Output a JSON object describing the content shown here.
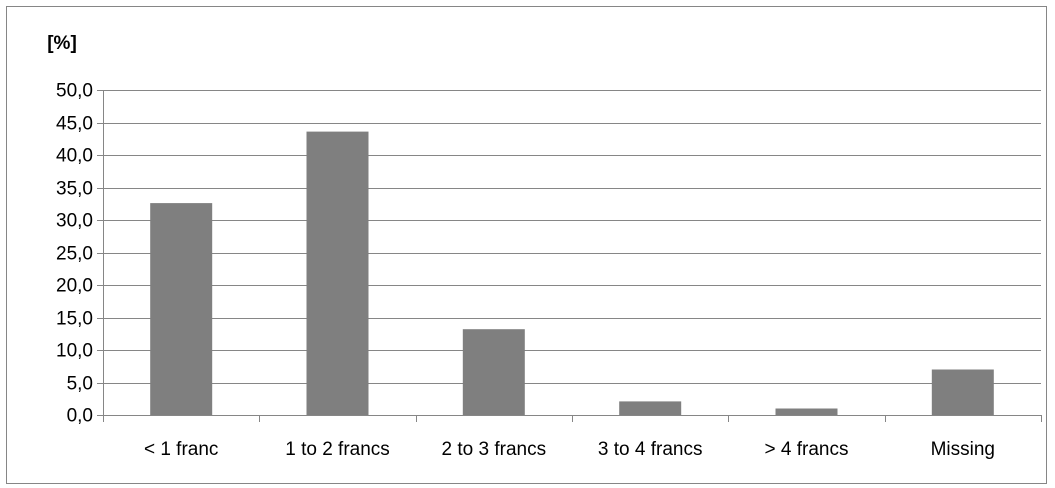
{
  "chart_data": {
    "type": "bar",
    "title": "",
    "xlabel": "",
    "ylabel": "[%]",
    "categories": [
      "< 1 franc",
      "1 to 2 francs",
      "2 to 3 francs",
      "3 to 4 francs",
      "> 4 francs",
      "Missing"
    ],
    "values": [
      32.6,
      43.6,
      13.2,
      2.1,
      1.0,
      7.0
    ],
    "ylim": [
      0,
      50
    ],
    "yticks": [
      "0,0",
      "5,0",
      "10,0",
      "15,0",
      "20,0",
      "25,0",
      "30,0",
      "35,0",
      "40,0",
      "45,0",
      "50,0"
    ],
    "grid": true,
    "legend": "none",
    "colors": {
      "bar": "#7f7f7f",
      "gridline": "#868686",
      "axis": "#868686",
      "frame": "#868686"
    }
  }
}
